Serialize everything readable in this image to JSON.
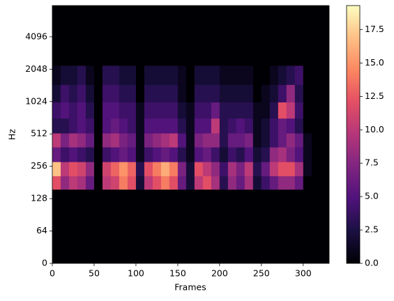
{
  "chart_data": {
    "type": "heatmap",
    "xlabel": "Frames",
    "ylabel": "Hz",
    "xlim": [
      0,
      331
    ],
    "xticks": [
      0,
      50,
      100,
      150,
      200,
      250,
      300
    ],
    "yscale": "symlog",
    "linthresh": 64,
    "ylim": [
      0,
      8000
    ],
    "yticks": [
      0,
      64,
      128,
      256,
      512,
      1024,
      2048,
      4096
    ],
    "colormap": "magma",
    "clim": [
      0,
      19.3
    ],
    "colorbar_ticks": [
      {
        "value": 0,
        "label": "0.0"
      },
      2.5,
      {
        "value": 5,
        "label": "5.0"
      },
      7.5,
      {
        "value": 10,
        "label": "10.0"
      },
      12.5,
      {
        "value": 15,
        "label": "15.0"
      },
      17.5
    ],
    "x": [
      5,
      15,
      25,
      35,
      45,
      55,
      65,
      75,
      85,
      95,
      105,
      115,
      125,
      135,
      145,
      155,
      165,
      175,
      185,
      195,
      205,
      215,
      225,
      235,
      245,
      255,
      265,
      275,
      285,
      295,
      305
    ],
    "y": [
      180,
      240,
      330,
      450,
      600,
      850,
      1200,
      1800
    ],
    "z": [
      [
        12,
        8,
        10,
        9,
        6,
        0,
        10,
        11,
        14,
        12,
        2,
        10,
        12,
        14,
        12,
        6,
        2,
        10,
        12,
        9,
        3,
        8,
        6,
        9,
        2,
        4,
        6,
        8,
        8,
        6,
        0
      ],
      [
        17,
        10,
        12,
        11,
        8,
        0,
        11,
        13,
        15,
        13,
        3,
        12,
        14,
        16,
        14,
        7,
        2,
        12,
        10,
        8,
        4,
        9,
        7,
        10,
        3,
        6,
        10,
        12,
        12,
        9,
        1
      ],
      [
        6,
        4,
        5,
        4,
        3,
        0,
        4,
        5,
        6,
        5,
        1,
        4,
        5,
        6,
        5,
        3,
        1,
        5,
        6,
        4,
        2,
        4,
        3,
        5,
        2,
        3,
        8,
        9,
        7,
        5,
        1
      ],
      [
        10,
        7,
        9,
        8,
        6,
        0,
        8,
        9,
        7,
        6,
        1,
        7,
        8,
        9,
        10,
        5,
        1,
        7,
        8,
        8,
        3,
        6,
        6,
        7,
        1,
        2,
        4,
        6,
        8,
        6,
        1
      ],
      [
        3,
        3,
        4,
        5,
        4,
        0,
        5,
        6,
        5,
        4,
        1,
        5,
        5,
        5,
        5,
        3,
        1,
        5,
        5,
        10,
        3,
        4,
        5,
        4,
        1,
        2,
        4,
        6,
        5,
        3,
        0
      ],
      [
        4,
        5,
        4,
        5,
        3,
        0,
        5,
        5,
        4,
        4,
        1,
        4,
        4,
        4,
        4,
        2,
        1,
        4,
        4,
        6,
        3,
        3,
        3,
        3,
        1,
        1,
        3,
        12,
        10,
        4,
        0
      ],
      [
        2,
        4,
        3,
        4,
        2,
        0,
        4,
        4,
        3,
        3,
        0,
        3,
        3,
        3,
        3,
        1,
        0,
        3,
        3,
        3,
        2,
        2,
        2,
        2,
        0,
        1,
        2,
        4,
        8,
        3,
        0
      ],
      [
        1,
        2,
        2,
        3,
        1,
        0,
        3,
        3,
        2,
        2,
        0,
        2,
        2,
        2,
        2,
        1,
        0,
        2,
        2,
        2,
        1,
        1,
        1,
        1,
        0,
        0,
        1,
        2,
        3,
        4,
        0
      ]
    ]
  }
}
